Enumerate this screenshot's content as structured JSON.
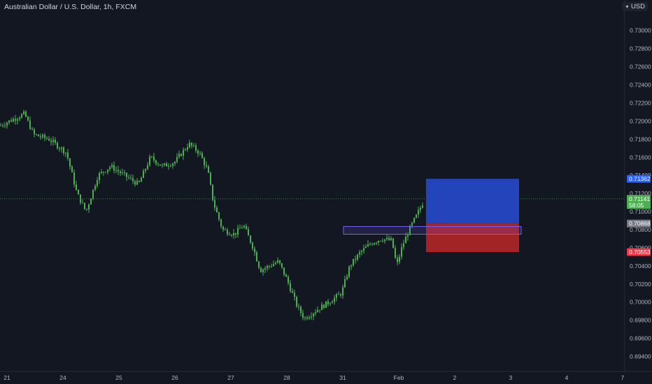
{
  "header": {
    "title": "Australian Dollar / U.S. Dollar, 1h, FXCM",
    "currency": "USD",
    "currency_icon": "chevron-down-icon"
  },
  "colors": {
    "background": "#131722",
    "up": "#26a69a",
    "candle": "#4caf50",
    "down": "#ef5350",
    "target_zone": "#2649c9",
    "stop_zone": "#b02626",
    "range_box": "#7b5cff",
    "axis_text": "#b2b5be",
    "last_price_badge": "#4caf50",
    "target_badge": "#2962ff",
    "entry_badge": "#787b86",
    "stop_badge": "#f23645"
  },
  "chart_data": {
    "type": "candlestick",
    "symbol": "Australian Dollar / U.S. Dollar, 1h, FXCM",
    "y_ticks": [
      "0.73000",
      "0.72800",
      "0.72600",
      "0.72400",
      "0.72200",
      "0.72000",
      "0.71800",
      "0.71600",
      "0.71400",
      "0.71200",
      "0.71000",
      "0.70800",
      "0.70600",
      "0.70400",
      "0.70200",
      "0.70000",
      "0.69800",
      "0.69600",
      "0.69400"
    ],
    "x_ticks": [
      "21",
      "24",
      "25",
      "26",
      "27",
      "28",
      "31",
      "Feb",
      "2",
      "3",
      "4",
      "7"
    ],
    "ylim": [
      0.6925,
      0.7326
    ],
    "anchors": [
      {
        "t": 0,
        "p": 0.7195
      },
      {
        "t": 35,
        "p": 0.7208
      },
      {
        "t": 48,
        "p": 0.7185
      },
      {
        "t": 70,
        "p": 0.718
      },
      {
        "t": 95,
        "p": 0.7165
      },
      {
        "t": 110,
        "p": 0.712
      },
      {
        "t": 123,
        "p": 0.71
      },
      {
        "t": 140,
        "p": 0.714
      },
      {
        "t": 158,
        "p": 0.715
      },
      {
        "t": 178,
        "p": 0.714
      },
      {
        "t": 198,
        "p": 0.713
      },
      {
        "t": 215,
        "p": 0.716
      },
      {
        "t": 232,
        "p": 0.715
      },
      {
        "t": 250,
        "p": 0.7155
      },
      {
        "t": 270,
        "p": 0.7175
      },
      {
        "t": 285,
        "p": 0.7165
      },
      {
        "t": 297,
        "p": 0.7145
      },
      {
        "t": 305,
        "p": 0.711
      },
      {
        "t": 318,
        "p": 0.708
      },
      {
        "t": 335,
        "p": 0.7075
      },
      {
        "t": 348,
        "p": 0.7085
      },
      {
        "t": 362,
        "p": 0.706
      },
      {
        "t": 372,
        "p": 0.7035
      },
      {
        "t": 385,
        "p": 0.704
      },
      {
        "t": 398,
        "p": 0.7045
      },
      {
        "t": 410,
        "p": 0.7025
      },
      {
        "t": 425,
        "p": 0.6995
      },
      {
        "t": 435,
        "p": 0.6982
      },
      {
        "t": 450,
        "p": 0.699
      },
      {
        "t": 470,
        "p": 0.7
      },
      {
        "t": 488,
        "p": 0.701
      },
      {
        "t": 500,
        "p": 0.704
      },
      {
        "t": 515,
        "p": 0.7055
      },
      {
        "t": 530,
        "p": 0.7065
      },
      {
        "t": 545,
        "p": 0.707
      },
      {
        "t": 560,
        "p": 0.7068
      },
      {
        "t": 567,
        "p": 0.704
      },
      {
        "t": 575,
        "p": 0.7062
      },
      {
        "t": 585,
        "p": 0.708
      },
      {
        "t": 597,
        "p": 0.7098
      },
      {
        "t": 607,
        "p": 0.7114
      }
    ],
    "last_price": {
      "value": 0.71141,
      "label": "0.71141",
      "countdown": "58:05"
    },
    "position": {
      "target": {
        "value": 0.71362,
        "label": "0.71362"
      },
      "entry": {
        "value": 0.70868,
        "label": "0.70868"
      },
      "stop": {
        "value": 0.70553,
        "label": "0.70553"
      }
    },
    "range_box": {
      "top": 0.70835,
      "bottom": 0.7075
    }
  }
}
